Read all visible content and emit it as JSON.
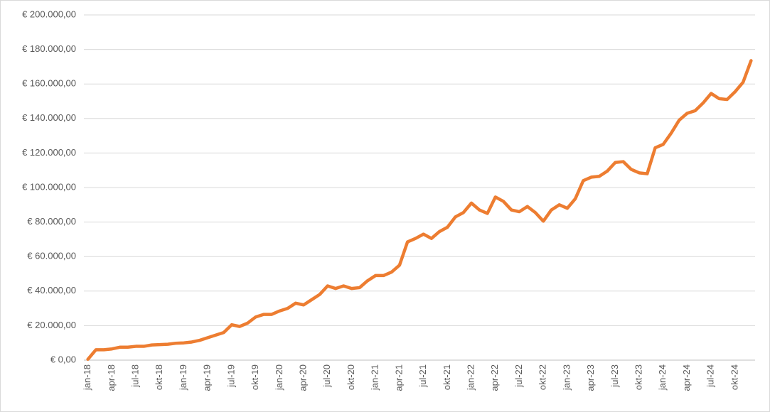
{
  "chart_data": {
    "type": "line",
    "categories": [
      "jan-18",
      null,
      null,
      "apr-18",
      null,
      null,
      "jul-18",
      null,
      null,
      "okt-18",
      null,
      null,
      "jan-19",
      null,
      null,
      "apr-19",
      null,
      null,
      "jul-19",
      null,
      null,
      "okt-19",
      null,
      null,
      "jan-20",
      null,
      null,
      "apr-20",
      null,
      null,
      "jul-20",
      null,
      null,
      "okt-20",
      null,
      null,
      "jan-21",
      null,
      null,
      "apr-21",
      null,
      null,
      "jul-21",
      null,
      null,
      "okt-21",
      null,
      null,
      "jan-22",
      null,
      null,
      "apr-22",
      null,
      null,
      "jul-22",
      null,
      null,
      "okt-22",
      null,
      null,
      "jan-23",
      null,
      null,
      "apr-23",
      null,
      null,
      "jul-23",
      null,
      null,
      "okt-23",
      null,
      null,
      "jan-24",
      null,
      null,
      "apr-24",
      null,
      null,
      "jul-24",
      null,
      null,
      "okt-24",
      null,
      null
    ],
    "series": [
      {
        "color": "#ed7d31",
        "values": [
          500,
          6000,
          6000,
          6500,
          7500,
          7500,
          8000,
          8000,
          8800,
          9000,
          9200,
          9800,
          10000,
          10500,
          11500,
          13000,
          14500,
          16000,
          20500,
          19500,
          21500,
          25000,
          26500,
          26500,
          28500,
          30000,
          33000,
          32000,
          35000,
          38000,
          43000,
          41500,
          43000,
          41500,
          42000,
          46000,
          49000,
          49000,
          51000,
          55000,
          68500,
          70500,
          73000,
          70500,
          74500,
          77000,
          83000,
          85500,
          91000,
          87000,
          85000,
          94500,
          92000,
          87000,
          86000,
          89000,
          85500,
          80500,
          87000,
          90000,
          88000,
          93500,
          104000,
          106000,
          106500,
          109500,
          114500,
          115000,
          110500,
          108500,
          108000,
          123000,
          125000,
          131500,
          139000,
          143000,
          144500,
          149000,
          154500,
          151500,
          151000,
          155500,
          161000,
          173500
        ]
      }
    ],
    "ylim": [
      0,
      200000
    ],
    "yticks": [
      {
        "value": 0,
        "label": "€ 0,00"
      },
      {
        "value": 20000,
        "label": "€ 20.000,00"
      },
      {
        "value": 40000,
        "label": "€ 40.000,00"
      },
      {
        "value": 60000,
        "label": "€ 60.000,00"
      },
      {
        "value": 80000,
        "label": "€ 80.000,00"
      },
      {
        "value": 100000,
        "label": "€ 100.000,00"
      },
      {
        "value": 120000,
        "label": "€ 120.000,00"
      },
      {
        "value": 140000,
        "label": "€ 140.000,00"
      },
      {
        "value": 160000,
        "label": "€ 160.000,00"
      },
      {
        "value": 180000,
        "label": "€ 180.000,00"
      },
      {
        "value": 200000,
        "label": "€ 200.000,00"
      }
    ],
    "grid": true
  }
}
